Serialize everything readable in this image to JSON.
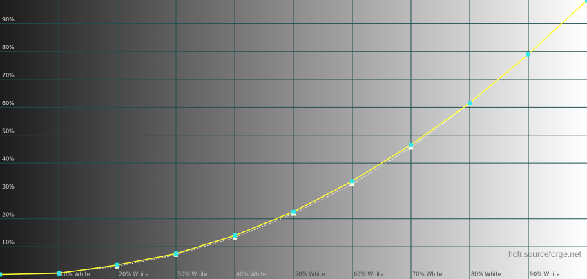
{
  "chart_data": {
    "type": "line",
    "x": [
      0,
      10,
      20,
      30,
      40,
      50,
      60,
      70,
      80,
      90,
      100
    ],
    "series": [
      {
        "color": "#ffff33",
        "marker_color": "#33e6e6",
        "line_style": "solid",
        "values": [
          0,
          0.4,
          3.4,
          7.5,
          14,
          22.5,
          33.5,
          46.5,
          61.5,
          79,
          98.4
        ]
      },
      {
        "color": "#f4f4e4",
        "marker_color": "#fffde0",
        "line_style": "dotted",
        "values": [
          0,
          0.6,
          2.9,
          7.1,
          13.3,
          21.8,
          32.4,
          45.6,
          61.2,
          79,
          98.4
        ]
      }
    ],
    "xlim": [
      0,
      100
    ],
    "ylim": [
      0,
      100
    ],
    "xticks": [
      {
        "value": 10,
        "label": "10% White"
      },
      {
        "value": 20,
        "label": "20% White"
      },
      {
        "value": 30,
        "label": "30% White"
      },
      {
        "value": 40,
        "label": "40% White"
      },
      {
        "value": 50,
        "label": "50% White"
      },
      {
        "value": 60,
        "label": "60% White"
      },
      {
        "value": 70,
        "label": "70% White"
      },
      {
        "value": 80,
        "label": "80% White"
      },
      {
        "value": 90,
        "label": "90% White"
      }
    ],
    "yticks": [
      {
        "value": 10,
        "label": "10%"
      },
      {
        "value": 20,
        "label": "20%"
      },
      {
        "value": 30,
        "label": "30%"
      },
      {
        "value": 40,
        "label": "40%"
      },
      {
        "value": 50,
        "label": "50%"
      },
      {
        "value": 60,
        "label": "60%"
      },
      {
        "value": 70,
        "label": "70%"
      },
      {
        "value": 80,
        "label": "80%"
      },
      {
        "value": 90,
        "label": "90%"
      }
    ],
    "grid": true,
    "grid_color": "#1f4f4f",
    "annotation": "hcfr.sourceforge.net"
  }
}
